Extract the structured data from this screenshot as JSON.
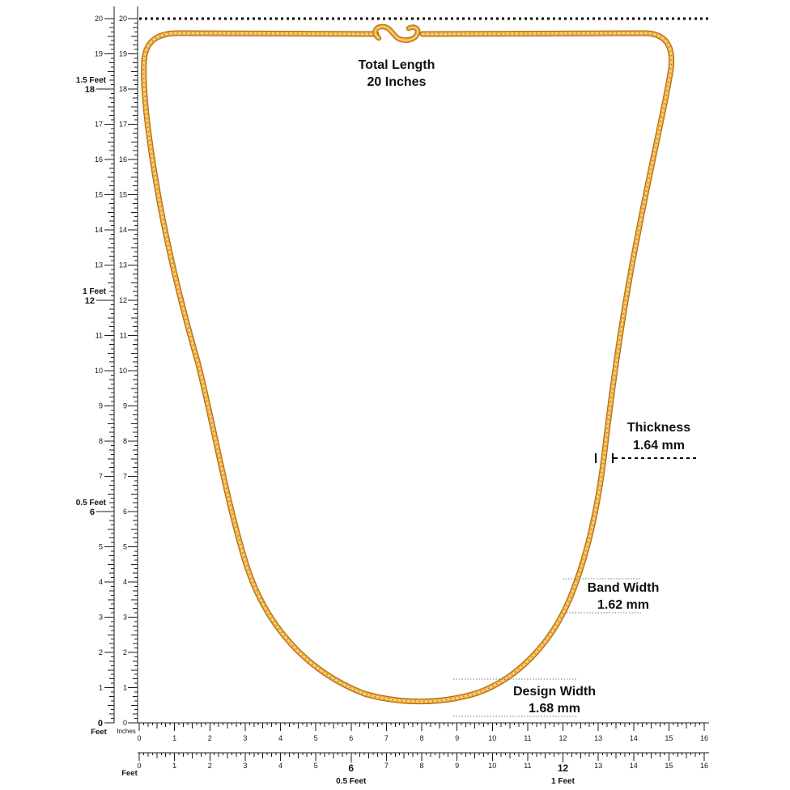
{
  "necklace": {
    "colors": {
      "outline": "#a9690f",
      "gold": "#e8a33a",
      "highlight": "#fcd57c",
      "link_shadow": "#c07d1c"
    }
  },
  "annotations": {
    "total_length": {
      "label": "Total Length",
      "value": "20 Inches"
    },
    "thickness": {
      "label": "Thickness",
      "value": "1.64 mm"
    },
    "band_width": {
      "label": "Band Width",
      "value": "1.62 mm"
    },
    "design_width": {
      "label": "Design Width",
      "value": "1.68 mm"
    }
  },
  "rulers": {
    "vertical_feet": {
      "unit_label": "Feet",
      "tick_labels": [
        "20",
        "19",
        "18",
        "17",
        "16",
        "15",
        "14",
        "13",
        "12",
        "11",
        "10",
        "9",
        "8",
        "7",
        "6",
        "5",
        "4",
        "3",
        "2",
        "1",
        "0"
      ],
      "feet_marks": [
        {
          "at": 18,
          "label": "1.5 Feet"
        },
        {
          "at": 12,
          "label": "1 Feet"
        },
        {
          "at": 6,
          "label": "0.5 Feet"
        }
      ]
    },
    "vertical_inches": {
      "unit_label": "Inches",
      "tick_labels": [
        "20",
        "19",
        "18",
        "17",
        "16",
        "15",
        "14",
        "13",
        "12",
        "11",
        "10",
        "9",
        "8",
        "7",
        "6",
        "5",
        "4",
        "3",
        "2",
        "1",
        "0"
      ]
    },
    "horizontal_inches": {
      "tick_labels": [
        "0",
        "1",
        "2",
        "3",
        "4",
        "5",
        "6",
        "7",
        "8",
        "9",
        "10",
        "11",
        "12",
        "13",
        "14",
        "15",
        "16"
      ]
    },
    "horizontal_feet": {
      "unit_label": "Feet",
      "tick_labels": [
        "0",
        "1",
        "2",
        "3",
        "4",
        "5",
        "6",
        "7",
        "8",
        "9",
        "10",
        "11",
        "12",
        "13",
        "14",
        "15",
        "16"
      ],
      "feet_marks": [
        {
          "at": 6,
          "label": "0.5 Feet"
        },
        {
          "at": 12,
          "label": "1 Feet"
        }
      ]
    }
  }
}
